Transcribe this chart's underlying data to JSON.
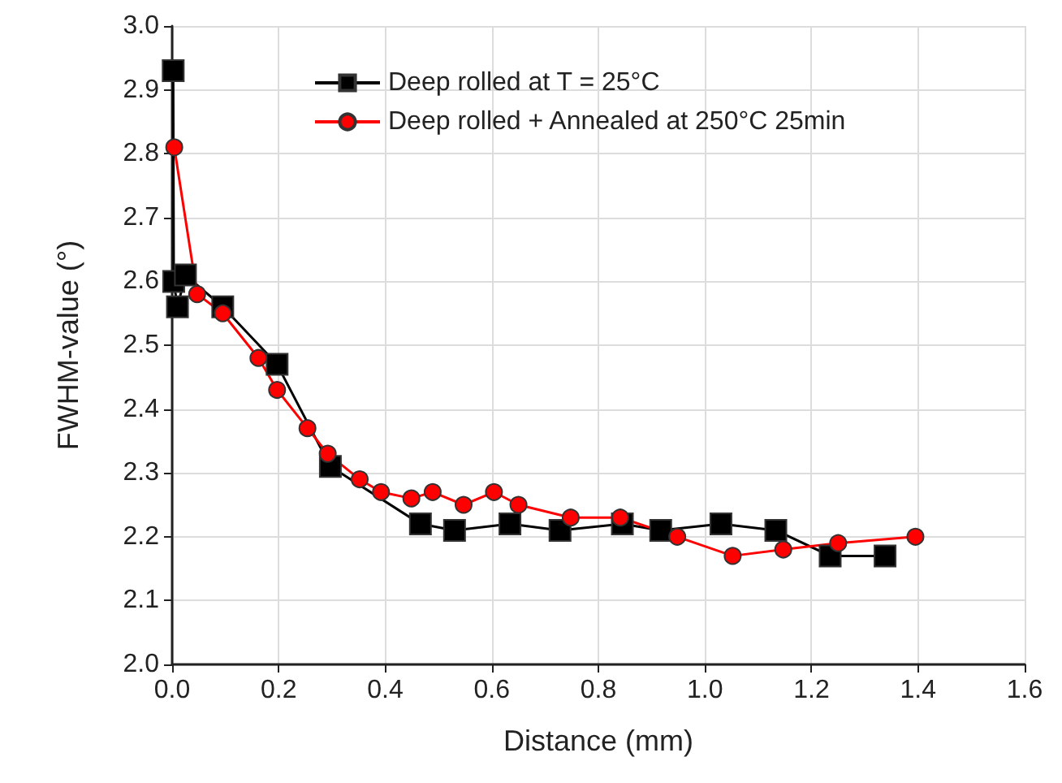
{
  "chart_data": {
    "type": "line",
    "xlabel": "Distance (mm)",
    "ylabel": "FWHM-value (°)",
    "xlim": [
      0,
      1.6
    ],
    "xticks": [
      {
        "value": 0,
        "label": "0.0"
      },
      0.2,
      0.4,
      0.6,
      0.8,
      {
        "value": 1,
        "label": "1.0"
      },
      1.2,
      1.4,
      1.6
    ],
    "ylim": [
      2.0,
      3.0
    ],
    "yticks": [
      {
        "value": 2,
        "label": "2.0"
      },
      2.1,
      2.2,
      2.3,
      2.4,
      2.5,
      2.6,
      2.7,
      2.8,
      2.9,
      {
        "value": 3,
        "label": "3.0"
      }
    ],
    "grid": true,
    "legend": "top right",
    "line_style": "solid",
    "series": [
      {
        "name": "Deep rolled at T = 25°C",
        "color": "#000000",
        "marker": "square",
        "x": [
          0.002,
          0.003,
          0.01,
          0.025,
          0.095,
          0.197,
          0.297,
          0.466,
          0.53,
          0.634,
          0.728,
          0.845,
          0.917,
          1.03,
          1.133,
          1.235,
          1.338
        ],
        "values": [
          2.93,
          2.6,
          2.56,
          2.61,
          2.56,
          2.47,
          2.31,
          2.22,
          2.21,
          2.22,
          2.21,
          2.22,
          2.21,
          2.22,
          2.21,
          2.17,
          2.17
        ]
      },
      {
        "name": "Deep rolled + Annealed at 250°C 25min",
        "color": "#ff0000",
        "marker": "circle",
        "x": [
          0.004,
          0.047,
          0.095,
          0.162,
          0.197,
          0.254,
          0.292,
          0.352,
          0.392,
          0.449,
          0.489,
          0.547,
          0.604,
          0.65,
          0.748,
          0.841,
          0.948,
          1.052,
          1.147,
          1.25,
          1.395
        ],
        "values": [
          2.81,
          2.58,
          2.55,
          2.48,
          2.43,
          2.37,
          2.33,
          2.29,
          2.27,
          2.26,
          2.27,
          2.25,
          2.27,
          2.25,
          2.23,
          2.23,
          2.2,
          2.17,
          2.18,
          2.19,
          2.2
        ]
      }
    ]
  }
}
